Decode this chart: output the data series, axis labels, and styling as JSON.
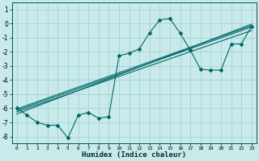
{
  "title": "",
  "xlabel": "Humidex (Indice chaleur)",
  "bg_color": "#c8eaea",
  "grid_color": "#a0cccc",
  "line_color": "#006868",
  "xlim": [
    -0.5,
    23.5
  ],
  "ylim": [
    -8.5,
    1.5
  ],
  "xticks": [
    0,
    1,
    2,
    3,
    4,
    5,
    6,
    7,
    8,
    9,
    10,
    11,
    12,
    13,
    14,
    15,
    16,
    17,
    18,
    19,
    20,
    21,
    22,
    23
  ],
  "yticks": [
    1,
    0,
    -1,
    -2,
    -3,
    -4,
    -5,
    -6,
    -7,
    -8
  ],
  "scatter_x": [
    0,
    1,
    2,
    3,
    4,
    5,
    6,
    7,
    8,
    9,
    10,
    11,
    12,
    13,
    14,
    15,
    16,
    17,
    18,
    19,
    20,
    21,
    22,
    23
  ],
  "scatter_y": [
    -6.0,
    -6.5,
    -7.0,
    -7.2,
    -7.2,
    -8.1,
    -6.5,
    -6.3,
    -6.7,
    -6.6,
    -2.3,
    -2.1,
    -1.8,
    -0.65,
    0.25,
    0.35,
    -0.7,
    -1.9,
    -3.25,
    -3.3,
    -3.3,
    -1.45,
    -1.45,
    -0.2
  ],
  "trend_lines": [
    {
      "x0": 0,
      "y0": -6.05,
      "x1": 23,
      "y1": -0.15
    },
    {
      "x0": 0,
      "y0": -6.15,
      "x1": 23,
      "y1": -0.25
    },
    {
      "x0": 0,
      "y0": -6.25,
      "x1": 23,
      "y1": -0.5
    },
    {
      "x0": 0,
      "y0": -6.4,
      "x1": 23,
      "y1": -0.05
    }
  ]
}
